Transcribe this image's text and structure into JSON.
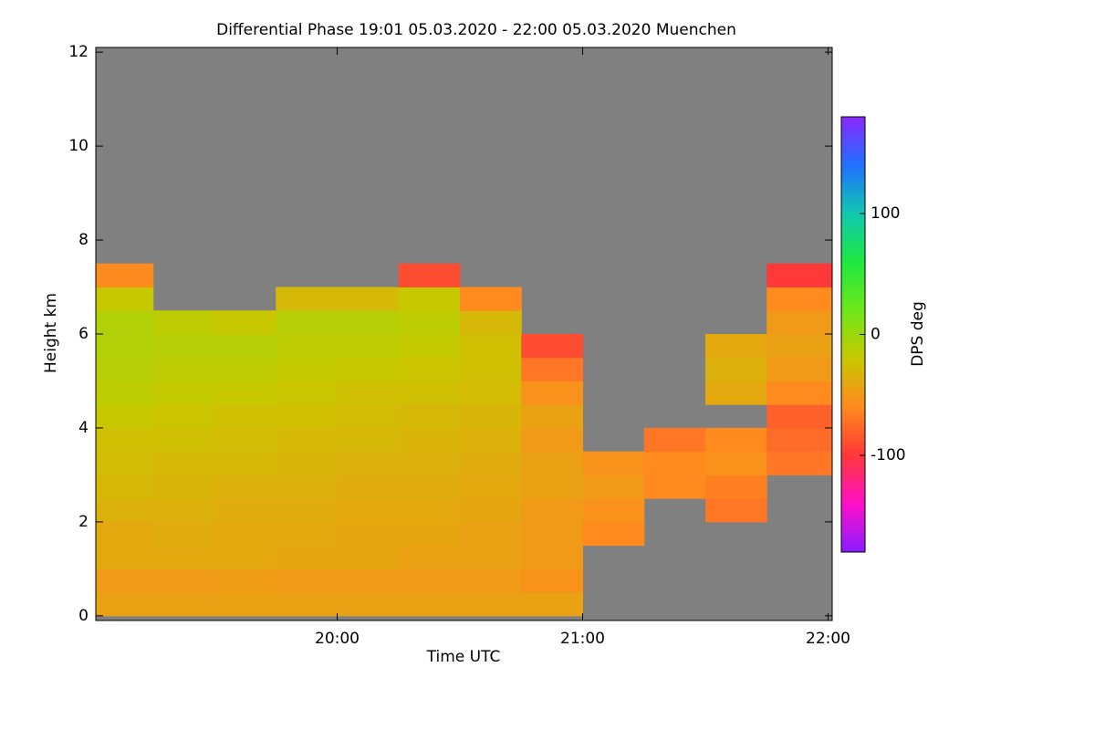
{
  "chart_data": {
    "type": "heatmap",
    "title": "Differential Phase   19:01 05.03.2020 - 22:00 05.03.2020 Muenchen",
    "x_label": "Time UTC",
    "y_label": "Height km",
    "colorbar_label": "DPS deg",
    "xlim": [
      19.0167,
      22.0167
    ],
    "xticks": [
      {
        "value": 20,
        "label": "20:00"
      },
      {
        "value": 21,
        "label": "21:00"
      },
      {
        "value": 22,
        "label": "22:00"
      }
    ],
    "ylim": [
      -0.1,
      12.1
    ],
    "yticks": [
      0,
      2,
      4,
      6,
      8,
      10,
      12
    ],
    "zlim": [
      -180,
      180
    ],
    "zticks": [
      -100,
      0,
      100
    ],
    "colors": [
      "#8a1cff",
      "#ff10c8",
      "#ff3838",
      "#ff8a1e",
      "#c8c800",
      "#6ee81a",
      "#1ee840",
      "#10c8b0",
      "#2070ff",
      "#8a28ff"
    ],
    "background": "#808080",
    "xbins": [
      19.0167,
      19.25,
      19.5,
      19.75,
      20.0,
      20.25,
      20.5,
      20.75,
      21.0,
      21.25,
      21.5,
      21.75,
      22.0167
    ],
    "ybins": [
      0,
      0.5,
      1,
      1.5,
      2,
      2.5,
      3,
      3.5,
      4,
      4.5,
      5,
      5.5,
      6,
      6.5,
      7,
      7.5
    ],
    "values": [
      [
        -45,
        -45,
        -45,
        -45,
        -45,
        -45,
        -45,
        -45,
        null,
        null,
        null,
        null
      ],
      [
        -50,
        -50,
        -48,
        -50,
        -50,
        -50,
        -50,
        -55,
        null,
        null,
        null,
        null
      ],
      [
        -40,
        -40,
        -40,
        -42,
        -42,
        -45,
        -45,
        -50,
        null,
        null,
        null,
        null
      ],
      [
        -40,
        -38,
        -40,
        -40,
        -42,
        -42,
        -45,
        -50,
        -60,
        null,
        null,
        null
      ],
      [
        -35,
        -35,
        -38,
        -38,
        -40,
        -40,
        -42,
        -50,
        -55,
        null,
        -70,
        null
      ],
      [
        -30,
        -32,
        -35,
        -35,
        -38,
        -38,
        -40,
        -45,
        -50,
        -60,
        -65,
        null
      ],
      [
        -28,
        -30,
        -30,
        -32,
        -35,
        -35,
        -38,
        -45,
        -55,
        -60,
        -55,
        -70
      ],
      [
        -25,
        -25,
        -28,
        -30,
        -30,
        -32,
        -35,
        -50,
        null,
        -70,
        -60,
        -75
      ],
      [
        -20,
        -22,
        -25,
        -25,
        -28,
        -30,
        -32,
        -45,
        null,
        null,
        null,
        -80
      ],
      [
        -15,
        -18,
        -20,
        -22,
        -25,
        -25,
        -28,
        -55,
        null,
        null,
        -40,
        -60
      ],
      [
        -12,
        -15,
        -15,
        -18,
        -20,
        -22,
        -25,
        -70,
        null,
        null,
        -35,
        -50
      ],
      [
        -10,
        -12,
        -12,
        -15,
        -15,
        -18,
        -25,
        -90,
        null,
        null,
        -40,
        -45
      ],
      [
        -10,
        -15,
        -20,
        -12,
        -12,
        -15,
        -30,
        null,
        null,
        null,
        null,
        -50
      ],
      [
        -20,
        null,
        null,
        -30,
        -30,
        -20,
        -60,
        null,
        null,
        null,
        null,
        -60
      ],
      [
        -60,
        null,
        null,
        null,
        null,
        -90,
        null,
        null,
        null,
        null,
        null,
        -100
      ]
    ]
  }
}
